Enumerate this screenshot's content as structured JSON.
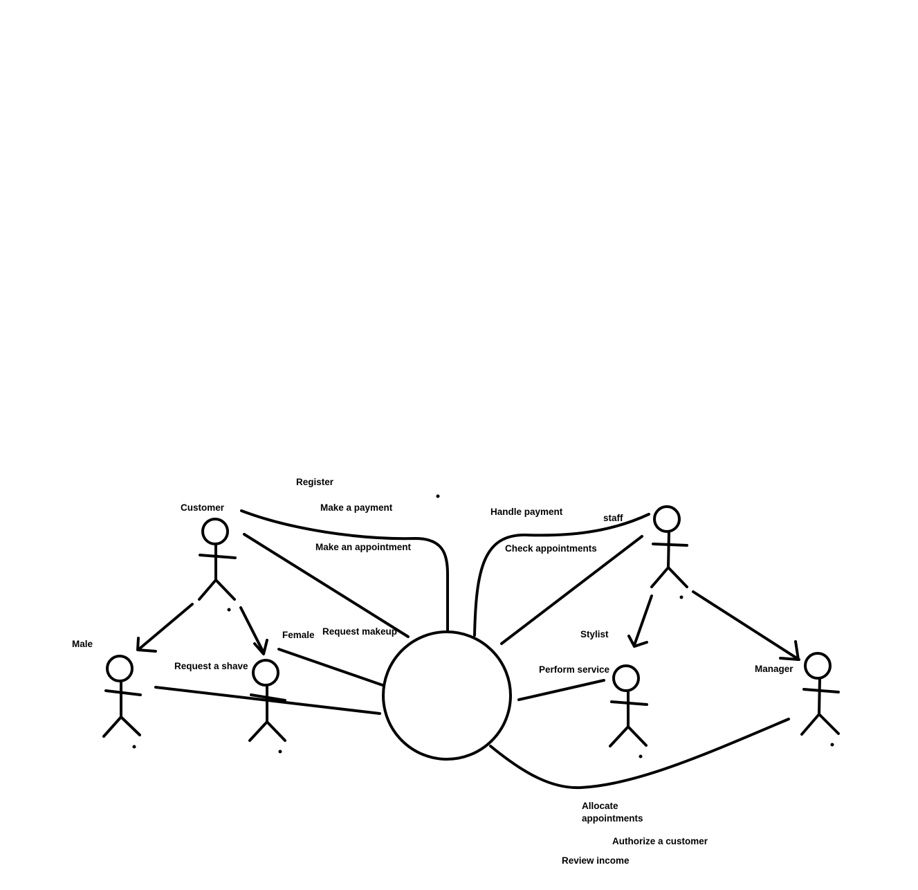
{
  "actors": {
    "customer": "Customer",
    "male": "Male",
    "female": "Female",
    "staff": "staff",
    "stylist": "Stylist",
    "manager": "Manager"
  },
  "use_cases": {
    "register": "Register",
    "make_payment": "Make a payment",
    "make_appointment": "Make an appointment",
    "handle_payment": "Handle payment",
    "check_appointments": "Check appointments",
    "request_makeup": "Request makeup",
    "request_shave": "Request a shave",
    "perform_service": "Perform service",
    "allocate_appointments_line1": "Allocate",
    "allocate_appointments_line2": "appointments",
    "authorize_customer": "Authorize a customer",
    "review_income": "Review income"
  },
  "colors": {
    "stroke": "#000000",
    "background": "#ffffff"
  }
}
